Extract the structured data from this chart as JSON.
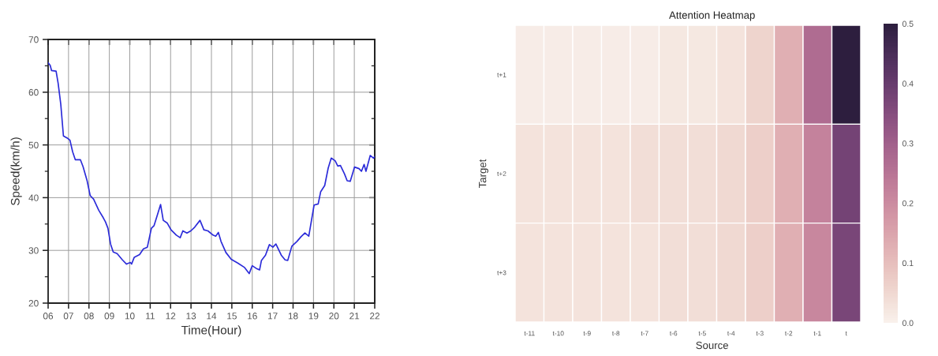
{
  "chart_data": [
    {
      "type": "line",
      "xlabel": "Time(Hour)",
      "ylabel": "Speed(km/h)",
      "xlim": [
        6,
        22
      ],
      "xticks": [
        {
          "value": 6,
          "label": "06"
        },
        {
          "value": 7,
          "label": "07"
        },
        {
          "value": 8,
          "label": "08"
        },
        {
          "value": 9,
          "label": "09"
        },
        10,
        11,
        12,
        13,
        14,
        15,
        16,
        17,
        18,
        19,
        20,
        21,
        22
      ],
      "ylim": [
        20,
        70
      ],
      "yticks": [
        20,
        {
          "value": 25,
          "label": null
        },
        30,
        {
          "value": 35,
          "label": null
        },
        40,
        {
          "value": 45,
          "label": null
        },
        50,
        {
          "value": 55,
          "label": null
        },
        60,
        {
          "value": 65,
          "label": null
        },
        70
      ],
      "grid": true,
      "x": [
        6.0,
        6.1,
        6.17,
        6.39,
        6.49,
        6.62,
        6.75,
        6.94,
        7.07,
        7.2,
        7.33,
        7.58,
        7.71,
        7.91,
        8.06,
        8.23,
        8.48,
        8.7,
        8.81,
        8.93,
        9.06,
        9.19,
        9.38,
        9.64,
        9.84,
        10.03,
        10.09,
        10.22,
        10.48,
        10.67,
        10.86,
        11.06,
        11.19,
        11.35,
        11.51,
        11.64,
        11.83,
        12.02,
        12.28,
        12.47,
        12.6,
        12.8,
        12.99,
        13.18,
        13.44,
        13.63,
        13.83,
        14.08,
        14.21,
        14.34,
        14.47,
        14.71,
        14.97,
        15.29,
        15.61,
        15.85,
        16.0,
        16.19,
        16.36,
        16.45,
        16.65,
        16.84,
        17.01,
        17.16,
        17.42,
        17.61,
        17.74,
        17.94,
        18.19,
        18.39,
        18.58,
        18.77,
        19.03,
        19.23,
        19.35,
        19.55,
        19.72,
        19.87,
        20.06,
        20.19,
        20.32,
        20.52,
        20.65,
        20.8,
        21.01,
        21.23,
        21.35,
        21.48,
        21.57,
        21.78,
        21.94,
        22.0
      ],
      "series": [
        {
          "color": "#2b2bd9",
          "values": [
            65.6,
            65.1,
            64.1,
            64.0,
            61.7,
            57.7,
            51.7,
            51.3,
            50.9,
            48.7,
            47.2,
            47.2,
            45.9,
            43.2,
            40.4,
            39.7,
            37.6,
            36.2,
            35.4,
            34.2,
            31.2,
            29.7,
            29.4,
            28.2,
            27.4,
            27.7,
            27.4,
            28.7,
            29.2,
            30.3,
            30.6,
            34.2,
            34.7,
            36.7,
            38.7,
            35.7,
            35.2,
            33.9,
            32.9,
            32.4,
            33.7,
            33.3,
            33.7,
            34.4,
            35.7,
            33.9,
            33.7,
            32.9,
            32.7,
            33.4,
            31.7,
            29.6,
            28.3,
            27.6,
            26.8,
            25.6,
            27.1,
            26.6,
            26.3,
            28.1,
            29.1,
            31.1,
            30.6,
            31.2,
            29.1,
            28.2,
            28.1,
            30.8,
            31.7,
            32.6,
            33.3,
            32.7,
            38.6,
            38.8,
            41.1,
            42.3,
            45.6,
            47.5,
            47.0,
            46.0,
            46.1,
            44.5,
            43.2,
            43.1,
            45.8,
            45.5,
            45.0,
            46.3,
            45.0,
            48.0,
            47.5,
            47.8
          ]
        }
      ]
    },
    {
      "type": "heatmap",
      "title": "Attention Heatmap",
      "xlabel": "Source",
      "ylabel": "Target",
      "categories": [
        "t-11",
        "t-10",
        "t-9",
        "t-8",
        "t-7",
        "t-6",
        "t-5",
        "t-4",
        "t-3",
        "t-2",
        "t-1",
        "t"
      ],
      "y_categories": [
        "t+1",
        "t+2",
        "t+3"
      ],
      "cells": [
        [
          0.01,
          0.01,
          0.01,
          0.01,
          0.01,
          0.02,
          0.02,
          0.03,
          0.06,
          0.13,
          0.27,
          0.5
        ],
        [
          0.03,
          0.03,
          0.03,
          0.03,
          0.04,
          0.04,
          0.04,
          0.05,
          0.07,
          0.13,
          0.22,
          0.38
        ],
        [
          0.03,
          0.03,
          0.03,
          0.03,
          0.03,
          0.04,
          0.04,
          0.05,
          0.07,
          0.13,
          0.21,
          0.37
        ]
      ],
      "clim": [
        0,
        0.5
      ],
      "cticks": [
        {
          "value": 0,
          "label": "0.0"
        },
        0.1,
        0.2,
        0.3,
        0.4,
        0.5
      ]
    }
  ]
}
